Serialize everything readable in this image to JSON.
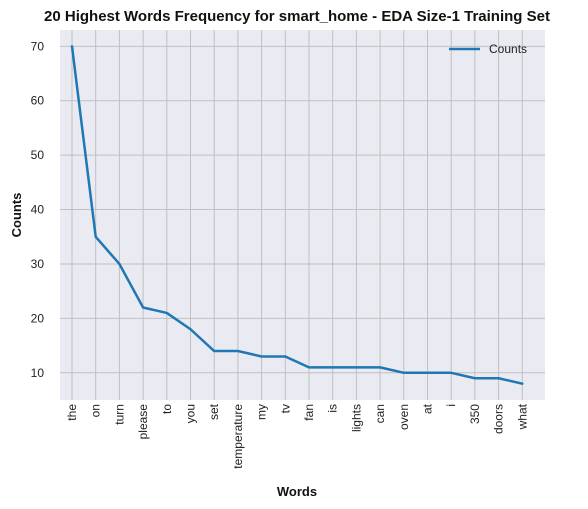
{
  "chart_data": {
    "type": "line",
    "title": "20 Highest Words Frequency for smart_home - EDA Size-1 Training Set",
    "xlabel": "Words",
    "ylabel": "Counts",
    "categories": [
      "the",
      "on",
      "turn",
      "please",
      "to",
      "you",
      "set",
      "temperature",
      "my",
      "tv",
      "fan",
      "is",
      "lights",
      "can",
      "oven",
      "at",
      "i",
      "350",
      "doors",
      "what"
    ],
    "series": [
      {
        "name": "Counts",
        "values": [
          70,
          35,
          30,
          22,
          21,
          18,
          14,
          14,
          13,
          13,
          11,
          11,
          11,
          11,
          10,
          10,
          10,
          9,
          9,
          8
        ],
        "color": "#1f77b4"
      }
    ],
    "yticks": [
      10,
      20,
      30,
      40,
      50,
      60,
      70
    ],
    "ylim": [
      5,
      73
    ],
    "grid": true,
    "legend_position": "top-right",
    "background_color": "#eaeaf2",
    "grid_color": "#c0c0c0"
  }
}
